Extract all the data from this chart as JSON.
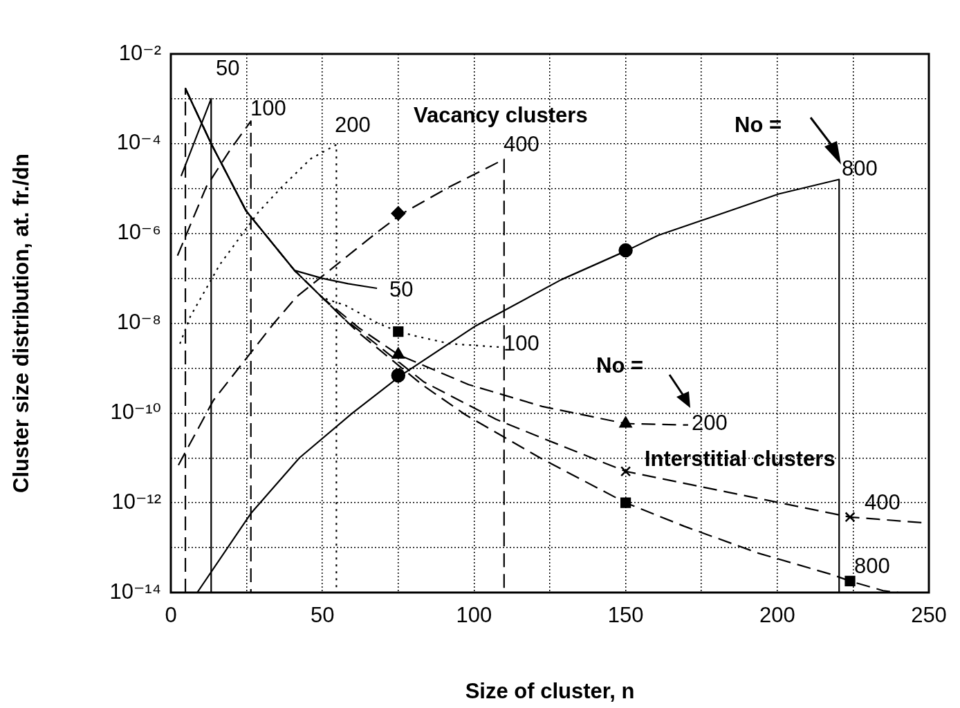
{
  "chart_data": {
    "type": "line",
    "xlabel": "Size of cluster, n",
    "ylabel": "Cluster size distribution, at. fr./dn",
    "log": true,
    "grid": true,
    "legend": false,
    "line_style": "solid",
    "marker": "none",
    "xlim": [
      0,
      250
    ],
    "xticks": [
      0,
      {
        "value": 25,
        "label": null
      },
      50,
      {
        "value": 75,
        "label": null
      },
      100,
      {
        "value": 125,
        "label": null
      },
      150,
      {
        "value": 175,
        "label": null
      },
      200,
      {
        "value": 225,
        "label": null
      },
      250
    ],
    "ylim": [
      1e-14,
      0.01
    ],
    "yticks": [
      {
        "value": 1e-14,
        "label": "10⁻¹⁴"
      },
      {
        "value": 1e-13,
        "label": null
      },
      {
        "value": 1e-12,
        "label": "10⁻¹²"
      },
      {
        "value": 1e-11,
        "label": null
      },
      {
        "value": 1e-10,
        "label": "10⁻¹⁰"
      },
      {
        "value": 1e-09,
        "label": null
      },
      {
        "value": 1e-08,
        "label": "10⁻⁸"
      },
      {
        "value": 1e-07,
        "label": null
      },
      {
        "value": 1e-06,
        "label": "10⁻⁶"
      },
      {
        "value": 1e-05,
        "label": null
      },
      {
        "value": 0.0001,
        "label": "10⁻⁴"
      },
      {
        "value": 0.001,
        "label": null
      },
      {
        "value": 0.01,
        "label": "10⁻²"
      }
    ],
    "series": [
      {
        "color": "#000000",
        "x": [
          3.4,
          13.3,
          13.3
        ],
        "values": [
          1.9e-05,
          0.001,
          1e-14
        ]
      },
      {
        "color": "#000000",
        "line_style": "dashed",
        "x": [
          2.2,
          11.7,
          19.5,
          26.4,
          26.4
        ],
        "values": [
          3.2e-07,
          1.1e-05,
          7.2e-05,
          0.00032,
          1e-14
        ]
      },
      {
        "color": "#000000",
        "line_style": "dotted",
        "x": [
          3,
          6.4,
          16.1,
          28.9,
          36.7,
          46.1,
          54.6,
          54.6
        ],
        "values": [
          3.5e-09,
          1.4e-08,
          2e-07,
          3e-06,
          1.1e-05,
          4.6e-05,
          9.5e-05,
          1e-14
        ]
      },
      {
        "color": "#000000",
        "line_style": "dashed",
        "x": [
          2.5,
          14,
          34,
          41.5,
          68.3,
          76.4,
          92,
          109.9,
          109.9
        ],
        "values": [
          6.9e-12,
          1.9e-10,
          1e-08,
          3.9e-08,
          1.1e-06,
          2.8e-06,
          1.1e-05,
          4.5e-05,
          1e-14
        ]
      },
      {
        "color": "#000000",
        "x": [
          8.7,
          26.4,
          42.4,
          59.9,
          75.9,
          100.5,
          128.7,
          150.5,
          160.8,
          200.5,
          220.4,
          220.4
        ],
        "values": [
          1e-14,
          5.8e-13,
          1e-11,
          1e-10,
          6.9e-10,
          8.7e-09,
          9.3e-08,
          4.2e-07,
          9.1e-07,
          7.6e-06,
          1.6e-05,
          1e-14
        ]
      },
      {
        "color": "#000000",
        "x": [
          4.8,
          13.3,
          24.8,
          34,
          40.8,
          50,
          58.5,
          68
        ],
        "values": [
          0.0017,
          0.0001,
          3.2e-06,
          5.5e-07,
          1.5e-07,
          1e-07,
          7.6e-08,
          6e-08
        ]
      },
      {
        "color": "#000000",
        "line_style": "dotted",
        "x": [
          4.8,
          13.3,
          24.8,
          34,
          40.8,
          50,
          57.6,
          68.3,
          75,
          81.2,
          92,
          109.6
        ],
        "values": [
          0.0017,
          0.0001,
          3.2e-06,
          5.5e-07,
          1.5e-07,
          3.7e-08,
          2.5e-08,
          1e-08,
          6.5e-09,
          5.1e-09,
          3.5e-09,
          2.9e-09
        ]
      },
      {
        "color": "#000000",
        "line_style": "dashed",
        "x": [
          4.8,
          13.3,
          24.8,
          34,
          40.8,
          50,
          62,
          75,
          98.2,
          122.5,
          150,
          170.6
        ],
        "values": [
          0.0017,
          0.0001,
          3.2e-06,
          5.5e-07,
          1.5e-07,
          3.7e-08,
          7.9e-09,
          2e-09,
          4.3e-10,
          1.4e-10,
          5.8e-11,
          5.4e-11
        ]
      },
      {
        "color": "#000000",
        "line_style": "dashed",
        "x": [
          4.8,
          13.3,
          24.8,
          34,
          40.8,
          50,
          56.9,
          83.5,
          107.3,
          130.3,
          150,
          224,
          250
        ],
        "values": [
          0.0017,
          0.0001,
          3.2e-06,
          5.5e-07,
          1.5e-07,
          3.7e-08,
          1.3e-08,
          4.9e-10,
          7.2e-11,
          1.7e-11,
          5e-12,
          4.8e-13,
          3.5e-13
        ]
      },
      {
        "color": "#000000",
        "line_style": "dashed",
        "x": [
          4.8,
          4.8,
          13.3,
          24.8,
          34,
          40.8,
          50,
          61.5,
          82.8,
          97.2,
          121.8,
          150,
          169.3,
          193.6,
          218.1,
          224,
          234.9,
          240
        ],
        "values": [
          1e-14,
          0.0017,
          0.0001,
          3.2e-06,
          5.5e-07,
          1.5e-07,
          3.7e-08,
          6.5e-09,
          4.3e-10,
          9.1e-11,
          1e-11,
          1e-12,
          3e-13,
          7.6e-14,
          2.5e-14,
          1.8e-14,
          1.1e-14,
          1e-14
        ]
      },
      {
        "type": "scatter",
        "color": "#000000",
        "marker": "circle",
        "x": [
          75,
          150
        ],
        "values": [
          6.9e-10,
          4.2e-07
        ]
      },
      {
        "type": "scatter",
        "color": "#000000",
        "marker": "diamond",
        "x": [
          75
        ],
        "values": [
          2.8e-06
        ]
      },
      {
        "type": "scatter",
        "color": "#000000",
        "marker": "square",
        "x": [
          75,
          150,
          224
        ],
        "values": [
          6.5e-09,
          1e-12,
          1.8e-14
        ]
      },
      {
        "type": "scatter",
        "color": "#000000",
        "marker": "triangle",
        "x": [
          75,
          150
        ],
        "values": [
          2e-09,
          5.8e-11
        ]
      },
      {
        "type": "scatter",
        "color": "#000000",
        "marker": "cross",
        "x": [
          150,
          224
        ],
        "values": [
          5e-12,
          4.8e-13
        ]
      }
    ],
    "annotations": [
      "50",
      "100",
      "200",
      "Vacancy clusters",
      "400",
      "No =",
      "800",
      "50",
      "100",
      "No =",
      "200",
      "Interstitial clusters",
      "400",
      "800"
    ]
  }
}
